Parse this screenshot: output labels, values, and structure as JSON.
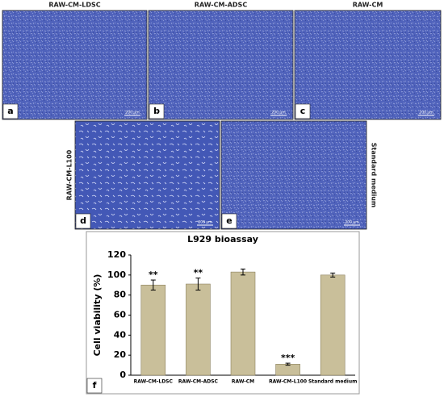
{
  "panels": [
    {
      "title": "RAW-CM-LDSC",
      "letter": "a",
      "scale": "200 μm"
    },
    {
      "title": "RAW-CM-ADSC",
      "letter": "b",
      "scale": "200 μm"
    },
    {
      "title": "RAW-CM",
      "letter": "c",
      "scale": "200 μm"
    },
    {
      "title": "RAW-CM-L100",
      "letter": "d",
      "scale": "200 μm"
    },
    {
      "title": "Standard medium",
      "letter": "e",
      "scale": "200 μm"
    }
  ],
  "chart_data": {
    "type": "bar",
    "title": "L929 bioassay",
    "panel_label": "f",
    "y_label": "Cell viability (%)",
    "categories": [
      "RAW-CM-LDSC",
      "RAW-CM-ADSC",
      "RAW-CM",
      "RAW-CM-L100",
      "Standard medium"
    ],
    "values": [
      90,
      91,
      103,
      11,
      100
    ],
    "errors": [
      5,
      6,
      3,
      1,
      2
    ],
    "annotations": [
      "**",
      "**",
      null,
      "***",
      null
    ],
    "color": "#c9bf9a",
    "ylim": [
      0,
      120
    ],
    "yticks": [
      0,
      20,
      40,
      60,
      80,
      100,
      120
    ],
    "grid": false
  }
}
